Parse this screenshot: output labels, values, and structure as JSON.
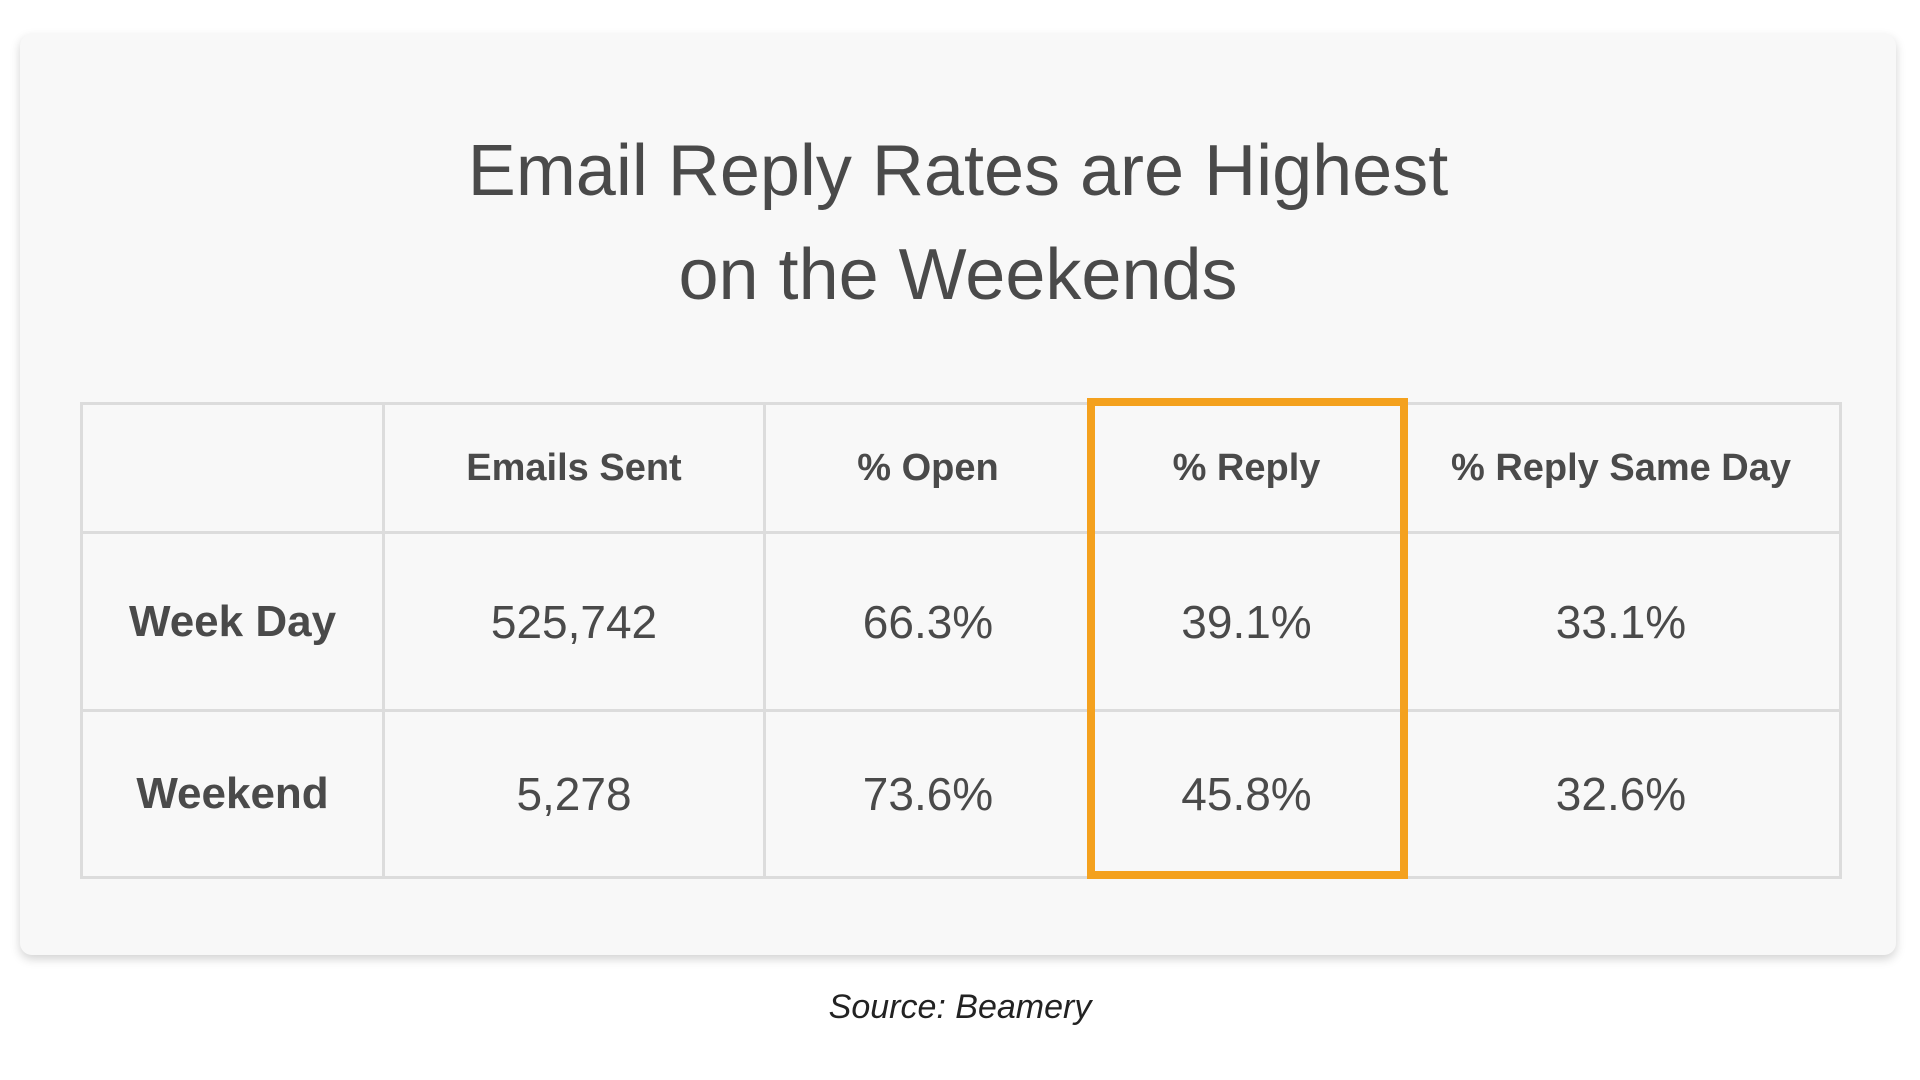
{
  "title": [
    "Email Reply Rates are Highest",
    "on the Weekends"
  ],
  "table": {
    "columns": [
      "Emails Sent",
      "% Open",
      "% Reply",
      "% Reply Same Day"
    ],
    "rows": [
      {
        "label": "Week Day",
        "cells": [
          "525,742",
          "66.3%",
          "39.1%",
          "33.1%"
        ]
      },
      {
        "label": "Weekend",
        "cells": [
          "5,278",
          "73.6%",
          "45.8%",
          "32.6%"
        ]
      }
    ]
  },
  "source": "Source: Beamery"
}
